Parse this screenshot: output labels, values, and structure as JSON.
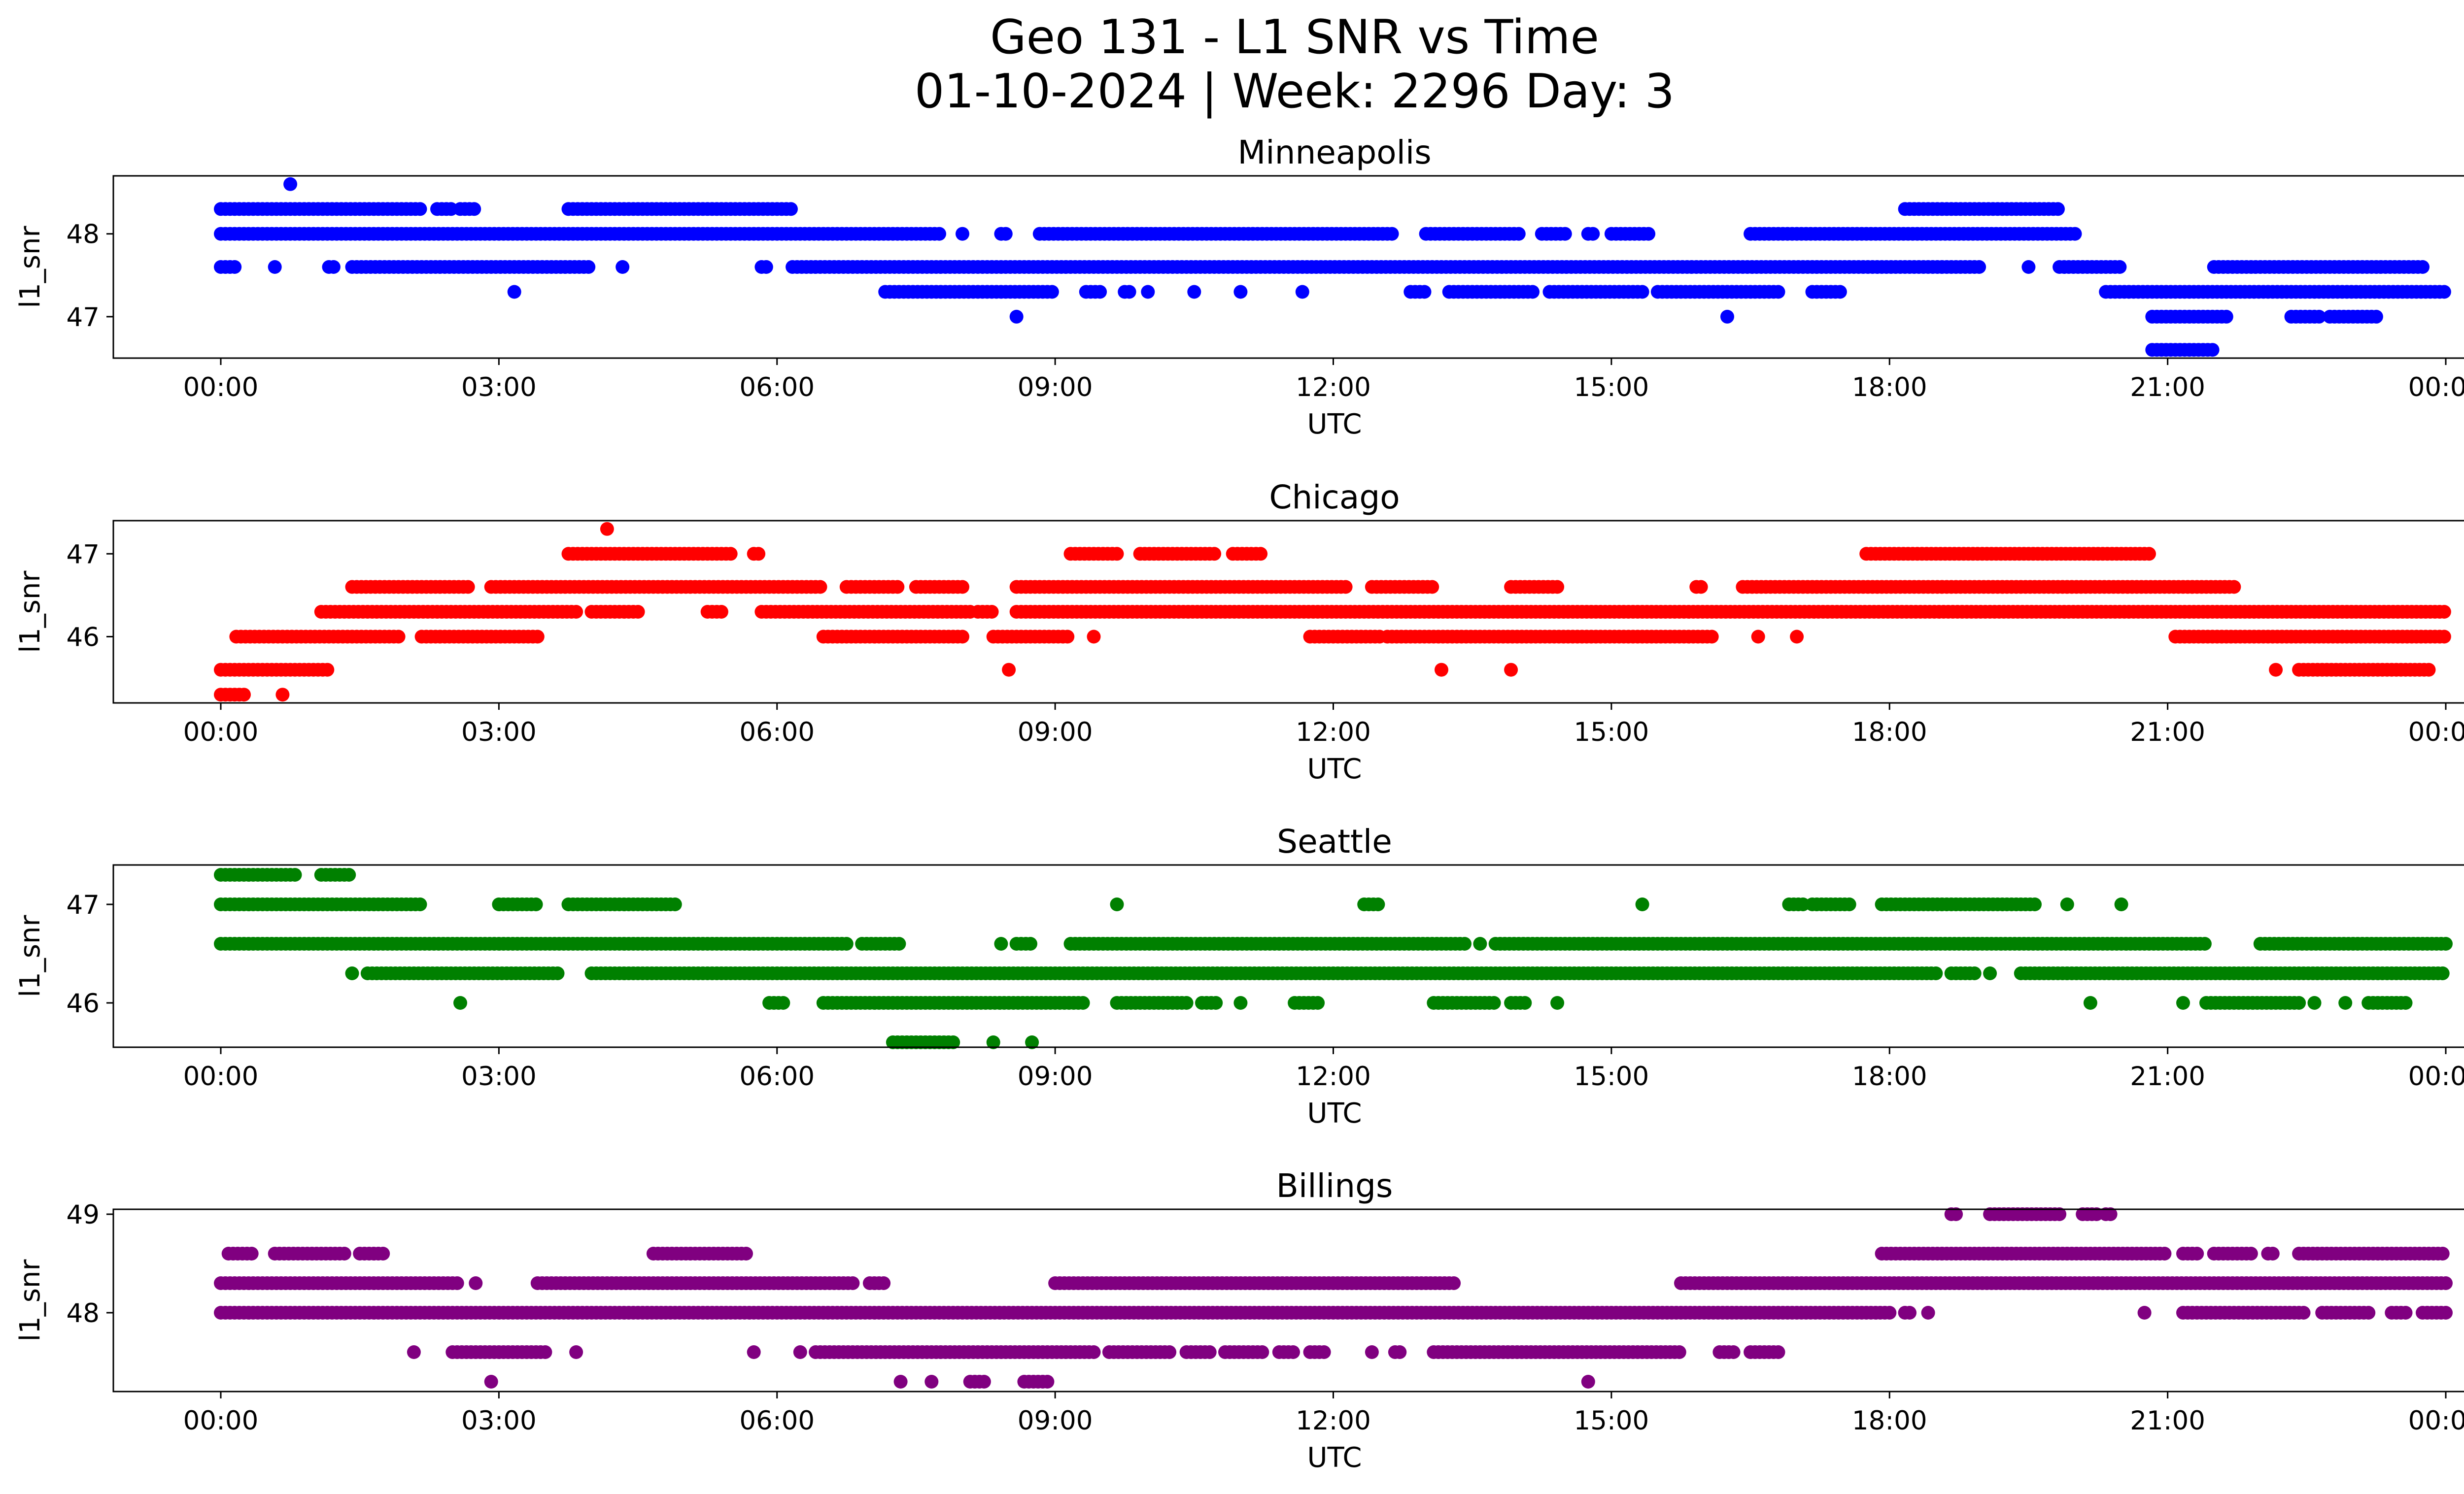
{
  "chart_data": {
    "type": "scatter",
    "title": "Geo 131 - L1 SNR vs Time",
    "subtitle": "01-10-2024 | Week: 2296 Day: 3",
    "xlabel": "UTC",
    "ylabel": "l1_snr",
    "x_ticks": [
      "00:00",
      "03:00",
      "06:00",
      "09:00",
      "12:00",
      "15:00",
      "18:00",
      "21:00",
      "00:00"
    ],
    "x_range": [
      "00:00",
      "24:00"
    ],
    "grid": false,
    "panels": [
      {
        "name": "Minneapolis",
        "color": "#0000ff",
        "ylim": [
          46.5,
          48.7
        ],
        "yticks": [
          47,
          48
        ],
        "ytick_labels": [
          "47",
          "48"
        ],
        "segments": [
          {
            "y": 48.3,
            "ranges": [
              [
                "00:00",
                "02:10"
              ],
              [
                "02:20",
                "02:30"
              ],
              [
                "02:35",
                "02:45"
              ],
              [
                "03:45",
                "06:10"
              ],
              [
                "18:10",
                "19:50"
              ]
            ]
          },
          {
            "y": 48.0,
            "ranges": [
              [
                "00:00",
                "07:45"
              ],
              [
                "08:00",
                "08:00"
              ],
              [
                "08:25",
                "08:30"
              ],
              [
                "08:50",
                "12:40"
              ],
              [
                "13:00",
                "14:00"
              ],
              [
                "14:15",
                "14:30"
              ],
              [
                "14:45",
                "14:50"
              ],
              [
                "15:00",
                "15:25"
              ],
              [
                "16:30",
                "20:00"
              ]
            ]
          },
          {
            "y": 47.6,
            "ranges": [
              [
                "00:00",
                "00:10"
              ],
              [
                "00:35",
                "00:35"
              ],
              [
                "01:10",
                "01:15"
              ],
              [
                "01:25",
                "04:00"
              ],
              [
                "04:20",
                "04:20"
              ],
              [
                "05:50",
                "05:55"
              ],
              [
                "06:10",
                "19:00"
              ],
              [
                "19:30",
                "19:30"
              ],
              [
                "19:50",
                "20:30"
              ],
              [
                "21:30",
                "23:45"
              ]
            ]
          },
          {
            "y": 47.3,
            "ranges": [
              [
                "03:10",
                "03:10"
              ],
              [
                "07:10",
                "09:00"
              ],
              [
                "09:20",
                "09:30"
              ],
              [
                "09:45",
                "09:50"
              ],
              [
                "10:00",
                "10:00"
              ],
              [
                "10:30",
                "10:30"
              ],
              [
                "11:00",
                "11:00"
              ],
              [
                "11:40",
                "11:40"
              ],
              [
                "12:50",
                "13:00"
              ],
              [
                "13:15",
                "14:10"
              ],
              [
                "14:20",
                "15:20"
              ],
              [
                "15:30",
                "16:50"
              ],
              [
                "17:10",
                "17:30"
              ],
              [
                "20:20",
                "24:00"
              ]
            ]
          },
          {
            "y": 47.0,
            "ranges": [
              [
                "08:35",
                "08:35"
              ],
              [
                "16:15",
                "16:15"
              ],
              [
                "20:50",
                "21:40"
              ],
              [
                "22:20",
                "22:40"
              ],
              [
                "22:45",
                "23:15"
              ]
            ]
          },
          {
            "y": 46.6,
            "ranges": [
              [
                "20:50",
                "21:30"
              ]
            ]
          }
        ],
        "points": [
          {
            "x": "00:45",
            "y": 48.6
          }
        ]
      },
      {
        "name": "Chicago",
        "color": "#ff0000",
        "ylim": [
          45.2,
          47.4
        ],
        "yticks": [
          46,
          47
        ],
        "ytick_labels": [
          "46",
          "47"
        ],
        "segments": [
          {
            "y": 47.0,
            "ranges": [
              [
                "03:45",
                "05:30"
              ],
              [
                "05:45",
                "05:50"
              ],
              [
                "09:10",
                "09:40"
              ],
              [
                "09:55",
                "10:45"
              ],
              [
                "10:55",
                "11:15"
              ],
              [
                "17:45",
                "20:50"
              ]
            ]
          },
          {
            "y": 46.6,
            "ranges": [
              [
                "01:25",
                "02:40"
              ],
              [
                "02:55",
                "06:30"
              ],
              [
                "06:45",
                "07:20"
              ],
              [
                "07:30",
                "08:00"
              ],
              [
                "08:35",
                "12:10"
              ],
              [
                "12:25",
                "13:05"
              ],
              [
                "13:55",
                "14:25"
              ],
              [
                "15:55",
                "16:00"
              ],
              [
                "16:25",
                "21:45"
              ]
            ]
          },
          {
            "y": 46.3,
            "ranges": [
              [
                "01:05",
                "03:50"
              ],
              [
                "04:00",
                "04:30"
              ],
              [
                "05:15",
                "05:25"
              ],
              [
                "05:50",
                "08:05"
              ],
              [
                "08:10",
                "08:20"
              ],
              [
                "08:35",
                "24:00"
              ]
            ]
          },
          {
            "y": 46.0,
            "ranges": [
              [
                "00:10",
                "01:55"
              ],
              [
                "02:10",
                "03:25"
              ],
              [
                "06:30",
                "08:00"
              ],
              [
                "08:20",
                "09:10"
              ],
              [
                "09:25",
                "09:25"
              ],
              [
                "11:45",
                "12:30"
              ],
              [
                "12:35",
                "16:05"
              ],
              [
                "16:35",
                "16:35"
              ],
              [
                "17:00",
                "17:00"
              ],
              [
                "21:05",
                "24:00"
              ]
            ]
          },
          {
            "y": 45.6,
            "ranges": [
              [
                "00:00",
                "01:10"
              ],
              [
                "08:30",
                "08:30"
              ],
              [
                "13:10",
                "13:10"
              ],
              [
                "13:55",
                "13:55"
              ],
              [
                "22:10",
                "22:10"
              ],
              [
                "22:25",
                "23:50"
              ]
            ]
          },
          {
            "y": 45.3,
            "ranges": [
              [
                "00:00",
                "00:15"
              ],
              [
                "00:40",
                "00:40"
              ]
            ]
          }
        ],
        "points": [
          {
            "x": "04:10",
            "y": 47.3
          }
        ]
      },
      {
        "name": "Seattle",
        "color": "#008000",
        "ylim": [
          45.55,
          47.4
        ],
        "yticks": [
          46,
          47
        ],
        "ytick_labels": [
          "46",
          "47"
        ],
        "segments": [
          {
            "y": 47.3,
            "ranges": [
              [
                "00:00",
                "00:50"
              ],
              [
                "01:05",
                "01:25"
              ]
            ]
          },
          {
            "y": 47.0,
            "ranges": [
              [
                "00:00",
                "02:10"
              ],
              [
                "03:00",
                "03:25"
              ],
              [
                "03:45",
                "04:55"
              ],
              [
                "09:40",
                "09:40"
              ],
              [
                "12:20",
                "12:30"
              ],
              [
                "15:20",
                "15:20"
              ],
              [
                "16:55",
                "17:05"
              ],
              [
                "17:10",
                "17:35"
              ],
              [
                "17:55",
                "19:35"
              ],
              [
                "19:55",
                "19:55"
              ],
              [
                "20:30",
                "20:30"
              ]
            ]
          },
          {
            "y": 46.6,
            "ranges": [
              [
                "00:00",
                "06:45"
              ],
              [
                "06:55",
                "07:20"
              ],
              [
                "08:25",
                "08:25"
              ],
              [
                "08:35",
                "08:45"
              ],
              [
                "09:10",
                "13:25"
              ],
              [
                "13:35",
                "13:35"
              ],
              [
                "13:45",
                "21:25"
              ],
              [
                "22:00",
                "24:00"
              ]
            ]
          },
          {
            "y": 46.3,
            "ranges": [
              [
                "01:25",
                "01:25"
              ],
              [
                "01:35",
                "03:40"
              ],
              [
                "04:00",
                "18:30"
              ],
              [
                "18:40",
                "18:55"
              ],
              [
                "19:05",
                "19:05"
              ],
              [
                "19:25",
                "24:00"
              ]
            ]
          },
          {
            "y": 46.0,
            "ranges": [
              [
                "02:35",
                "02:35"
              ],
              [
                "05:55",
                "06:05"
              ],
              [
                "06:30",
                "09:20"
              ],
              [
                "09:40",
                "10:25"
              ],
              [
                "10:35",
                "10:45"
              ],
              [
                "11:00",
                "11:00"
              ],
              [
                "11:35",
                "11:50"
              ],
              [
                "13:05",
                "13:45"
              ],
              [
                "13:55",
                "14:05"
              ],
              [
                "14:25",
                "14:25"
              ],
              [
                "20:10",
                "20:10"
              ],
              [
                "21:10",
                "21:10"
              ],
              [
                "21:25",
                "22:25"
              ],
              [
                "22:35",
                "22:35"
              ],
              [
                "22:55",
                "22:55"
              ],
              [
                "23:10",
                "23:35"
              ]
            ]
          },
          {
            "y": 45.6,
            "ranges": [
              [
                "07:15",
                "07:55"
              ],
              [
                "08:20",
                "08:20"
              ],
              [
                "08:45",
                "08:45"
              ]
            ]
          }
        ],
        "points": []
      },
      {
        "name": "Billings",
        "color": "#800080",
        "ylim": [
          47.2,
          49.05
        ],
        "yticks": [
          48,
          49
        ],
        "ytick_labels": [
          "48",
          "49"
        ],
        "segments": [
          {
            "y": 49.0,
            "ranges": [
              [
                "18:40",
                "18:45"
              ],
              [
                "19:05",
                "19:50"
              ],
              [
                "20:05",
                "20:15"
              ],
              [
                "20:20",
                "20:25"
              ]
            ]
          },
          {
            "y": 48.6,
            "ranges": [
              [
                "00:05",
                "00:20"
              ],
              [
                "00:35",
                "01:20"
              ],
              [
                "01:30",
                "01:45"
              ],
              [
                "04:40",
                "05:40"
              ],
              [
                "17:55",
                "21:00"
              ],
              [
                "21:10",
                "21:20"
              ],
              [
                "21:30",
                "21:55"
              ],
              [
                "22:05",
                "22:10"
              ],
              [
                "22:25",
                "24:00"
              ]
            ]
          },
          {
            "y": 48.3,
            "ranges": [
              [
                "00:00",
                "02:35"
              ],
              [
                "02:45",
                "02:45"
              ],
              [
                "03:25",
                "06:50"
              ],
              [
                "07:00",
                "07:10"
              ],
              [
                "09:00",
                "13:20"
              ],
              [
                "15:45",
                "24:00"
              ]
            ]
          },
          {
            "y": 48.0,
            "ranges": [
              [
                "00:00",
                "18:00"
              ],
              [
                "18:10",
                "18:15"
              ],
              [
                "18:25",
                "18:25"
              ],
              [
                "20:45",
                "20:45"
              ],
              [
                "21:10",
                "22:30"
              ],
              [
                "22:40",
                "23:10"
              ],
              [
                "23:25",
                "23:35"
              ],
              [
                "23:45",
                "24:00"
              ]
            ]
          },
          {
            "y": 47.6,
            "ranges": [
              [
                "02:05",
                "02:05"
              ],
              [
                "02:30",
                "03:30"
              ],
              [
                "03:50",
                "03:50"
              ],
              [
                "05:45",
                "05:45"
              ],
              [
                "06:15",
                "06:15"
              ],
              [
                "06:25",
                "09:25"
              ],
              [
                "09:35",
                "10:15"
              ],
              [
                "10:25",
                "10:40"
              ],
              [
                "10:50",
                "11:15"
              ],
              [
                "11:25",
                "11:35"
              ],
              [
                "11:45",
                "11:55"
              ],
              [
                "12:25",
                "12:25"
              ],
              [
                "12:40",
                "12:45"
              ],
              [
                "13:05",
                "15:45"
              ],
              [
                "16:10",
                "16:20"
              ],
              [
                "16:30",
                "16:50"
              ]
            ]
          },
          {
            "y": 47.3,
            "ranges": [
              [
                "02:55",
                "02:55"
              ],
              [
                "07:20",
                "07:20"
              ],
              [
                "07:40",
                "07:40"
              ],
              [
                "08:05",
                "08:15"
              ],
              [
                "08:40",
                "08:55"
              ],
              [
                "14:45",
                "14:45"
              ]
            ]
          }
        ],
        "points": []
      }
    ]
  }
}
